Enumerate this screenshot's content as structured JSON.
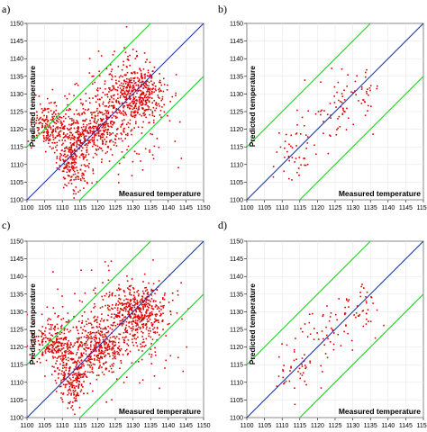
{
  "colors": {
    "ideal_line": "#1533c8",
    "band_lines": "#22d02a",
    "points": "#e00000"
  },
  "chart_data": [
    {
      "type": "scatter",
      "panel_label": "a)",
      "xlabel": "Measured temperature",
      "ylabel": "Predicted temperature",
      "xlim": [
        1100,
        1150
      ],
      "ylim": [
        1100,
        1150
      ],
      "xticks": [
        "1100",
        "1105",
        "1110",
        "1115",
        "1120",
        "1125",
        "1130",
        "1135",
        "1140",
        "1145",
        "1150"
      ],
      "yticks": [
        "1100",
        "1105",
        "1110",
        "1115",
        "1120",
        "1125",
        "1130",
        "1135",
        "1140",
        "1145",
        "1150"
      ],
      "grid": true,
      "reference_lines": {
        "ideal": "y = x",
        "bands": [
          15,
          -15
        ]
      },
      "point_count_estimate": 1400,
      "clusters": [
        {
          "x": 1113,
          "y": 1112,
          "sx": 2.2,
          "sy": 4.5,
          "n": 260
        },
        {
          "x": 1120,
          "y": 1120,
          "sx": 3.5,
          "sy": 3.5,
          "n": 260
        },
        {
          "x": 1131,
          "y": 1130,
          "sx": 4.2,
          "sy": 3.8,
          "n": 420
        },
        {
          "x": 1107,
          "y": 1121,
          "sx": 3.0,
          "sy": 3.2,
          "n": 200
        },
        {
          "x": 1125,
          "y": 1125,
          "sx": 8.0,
          "sy": 8.0,
          "n": 260
        }
      ]
    },
    {
      "type": "scatter",
      "panel_label": "b)",
      "xlabel": "Measured temperature",
      "ylabel": "Predicted temperature",
      "xlim": [
        1100,
        1150
      ],
      "ylim": [
        1100,
        1150
      ],
      "xticks": [
        "1100",
        "1105",
        "1110",
        "1115",
        "1120",
        "1125",
        "1130",
        "1135",
        "1140",
        "1145",
        "1150"
      ],
      "yticks": [
        "1100",
        "1105",
        "1110",
        "1115",
        "1120",
        "1125",
        "1130",
        "1135",
        "1140",
        "1145",
        "1150"
      ],
      "grid": true,
      "reference_lines": {
        "ideal": "y = x",
        "bands": [
          15,
          -15
        ]
      },
      "point_count_estimate": 130,
      "clusters": [
        {
          "x": 1114,
          "y": 1114,
          "sx": 3.0,
          "sy": 4.0,
          "n": 45
        },
        {
          "x": 1124,
          "y": 1124,
          "sx": 4.0,
          "sy": 4.5,
          "n": 45
        },
        {
          "x": 1132,
          "y": 1131,
          "sx": 3.0,
          "sy": 3.5,
          "n": 40
        }
      ]
    },
    {
      "type": "scatter",
      "panel_label": "c)",
      "xlabel": "Measured temperature",
      "ylabel": "Predicted temperature",
      "xlim": [
        1100,
        1150
      ],
      "ylim": [
        1100,
        1150
      ],
      "xticks": [
        "1100",
        "1105",
        "1110",
        "1115",
        "1120",
        "1125",
        "1130",
        "1135",
        "1140",
        "1145",
        "1150"
      ],
      "yticks": [
        "1100",
        "1105",
        "1110",
        "1115",
        "1120",
        "1125",
        "1130",
        "1135",
        "1140",
        "1145",
        "1150"
      ],
      "grid": true,
      "reference_lines": {
        "ideal": "y = x",
        "bands": [
          15,
          -15
        ]
      },
      "point_count_estimate": 1400,
      "clusters": [
        {
          "x": 1113,
          "y": 1112,
          "sx": 2.2,
          "sy": 4.5,
          "n": 260
        },
        {
          "x": 1120,
          "y": 1120,
          "sx": 3.5,
          "sy": 3.5,
          "n": 260
        },
        {
          "x": 1131,
          "y": 1130,
          "sx": 4.2,
          "sy": 3.8,
          "n": 420
        },
        {
          "x": 1107,
          "y": 1121,
          "sx": 3.0,
          "sy": 3.2,
          "n": 200
        },
        {
          "x": 1125,
          "y": 1125,
          "sx": 8.0,
          "sy": 8.0,
          "n": 260
        }
      ]
    },
    {
      "type": "scatter",
      "panel_label": "d)",
      "xlabel": "Measured temperature",
      "ylabel": "Predicted temperature",
      "xlim": [
        1100,
        1150
      ],
      "ylim": [
        1100,
        1150
      ],
      "xticks": [
        "1100",
        "1105",
        "1110",
        "1115",
        "1120",
        "1125",
        "1130",
        "1135",
        "1140",
        "1145",
        "1150"
      ],
      "yticks": [
        "1100",
        "1105",
        "1110",
        "1115",
        "1120",
        "1125",
        "1130",
        "1135",
        "1140",
        "1145",
        "1150"
      ],
      "grid": true,
      "reference_lines": {
        "ideal": "y = x",
        "bands": [
          15,
          -15
        ]
      },
      "point_count_estimate": 130,
      "clusters": [
        {
          "x": 1114,
          "y": 1114,
          "sx": 3.0,
          "sy": 4.0,
          "n": 45
        },
        {
          "x": 1124,
          "y": 1124,
          "sx": 4.0,
          "sy": 4.5,
          "n": 45
        },
        {
          "x": 1132,
          "y": 1131,
          "sx": 3.0,
          "sy": 3.5,
          "n": 40
        }
      ]
    }
  ]
}
